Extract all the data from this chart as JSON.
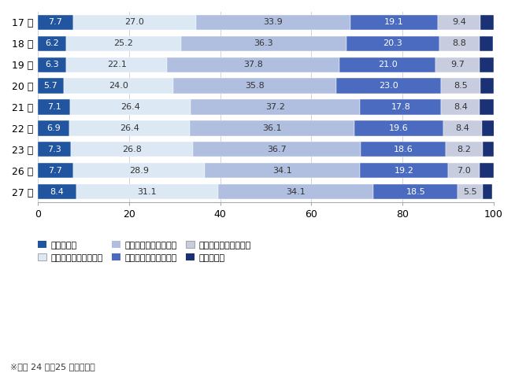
{
  "years": [
    "17 年",
    "18 年",
    "19 年",
    "20 年",
    "21 年",
    "22 年",
    "23 年",
    "26 年",
    "27 年"
  ],
  "categories": [
    "５時間未満",
    "５時間以上６時間未満",
    "６時間以上７時間未満",
    "７時間以上８時間未満",
    "８時間以上９時間未満",
    "９時間以上"
  ],
  "data": [
    [
      7.7,
      27.0,
      33.9,
      19.1,
      9.4,
      2.9
    ],
    [
      6.2,
      25.2,
      36.3,
      20.3,
      8.8,
      3.1
    ],
    [
      6.3,
      22.1,
      37.8,
      21.0,
      9.7,
      3.1
    ],
    [
      5.7,
      24.0,
      35.8,
      23.0,
      8.5,
      3.0
    ],
    [
      7.1,
      26.4,
      37.2,
      17.8,
      8.4,
      3.1
    ],
    [
      6.9,
      26.4,
      36.1,
      19.6,
      8.4,
      2.7
    ],
    [
      7.3,
      26.8,
      36.7,
      18.6,
      8.2,
      2.4
    ],
    [
      7.7,
      28.9,
      34.1,
      19.2,
      7.0,
      3.1
    ],
    [
      8.4,
      31.1,
      34.1,
      18.5,
      5.5,
      2.1
    ]
  ],
  "colors": [
    "#2155a0",
    "#dce9f5",
    "#b0bfdf",
    "#4a6bbf",
    "#c8ccdf",
    "#1a3175"
  ],
  "text_colors": [
    "white",
    "#333333",
    "#333333",
    "white",
    "#333333",
    "white"
  ],
  "background_color": "#ffffff",
  "note": "※平成 24 年、25 年は未実施",
  "xlim": [
    0,
    100
  ],
  "xticks": [
    0,
    20,
    40,
    60,
    80,
    100
  ],
  "bar_height": 0.72,
  "fontsize_bar": 8,
  "fontsize_axis": 9,
  "fontsize_legend": 8,
  "fontsize_note": 8
}
